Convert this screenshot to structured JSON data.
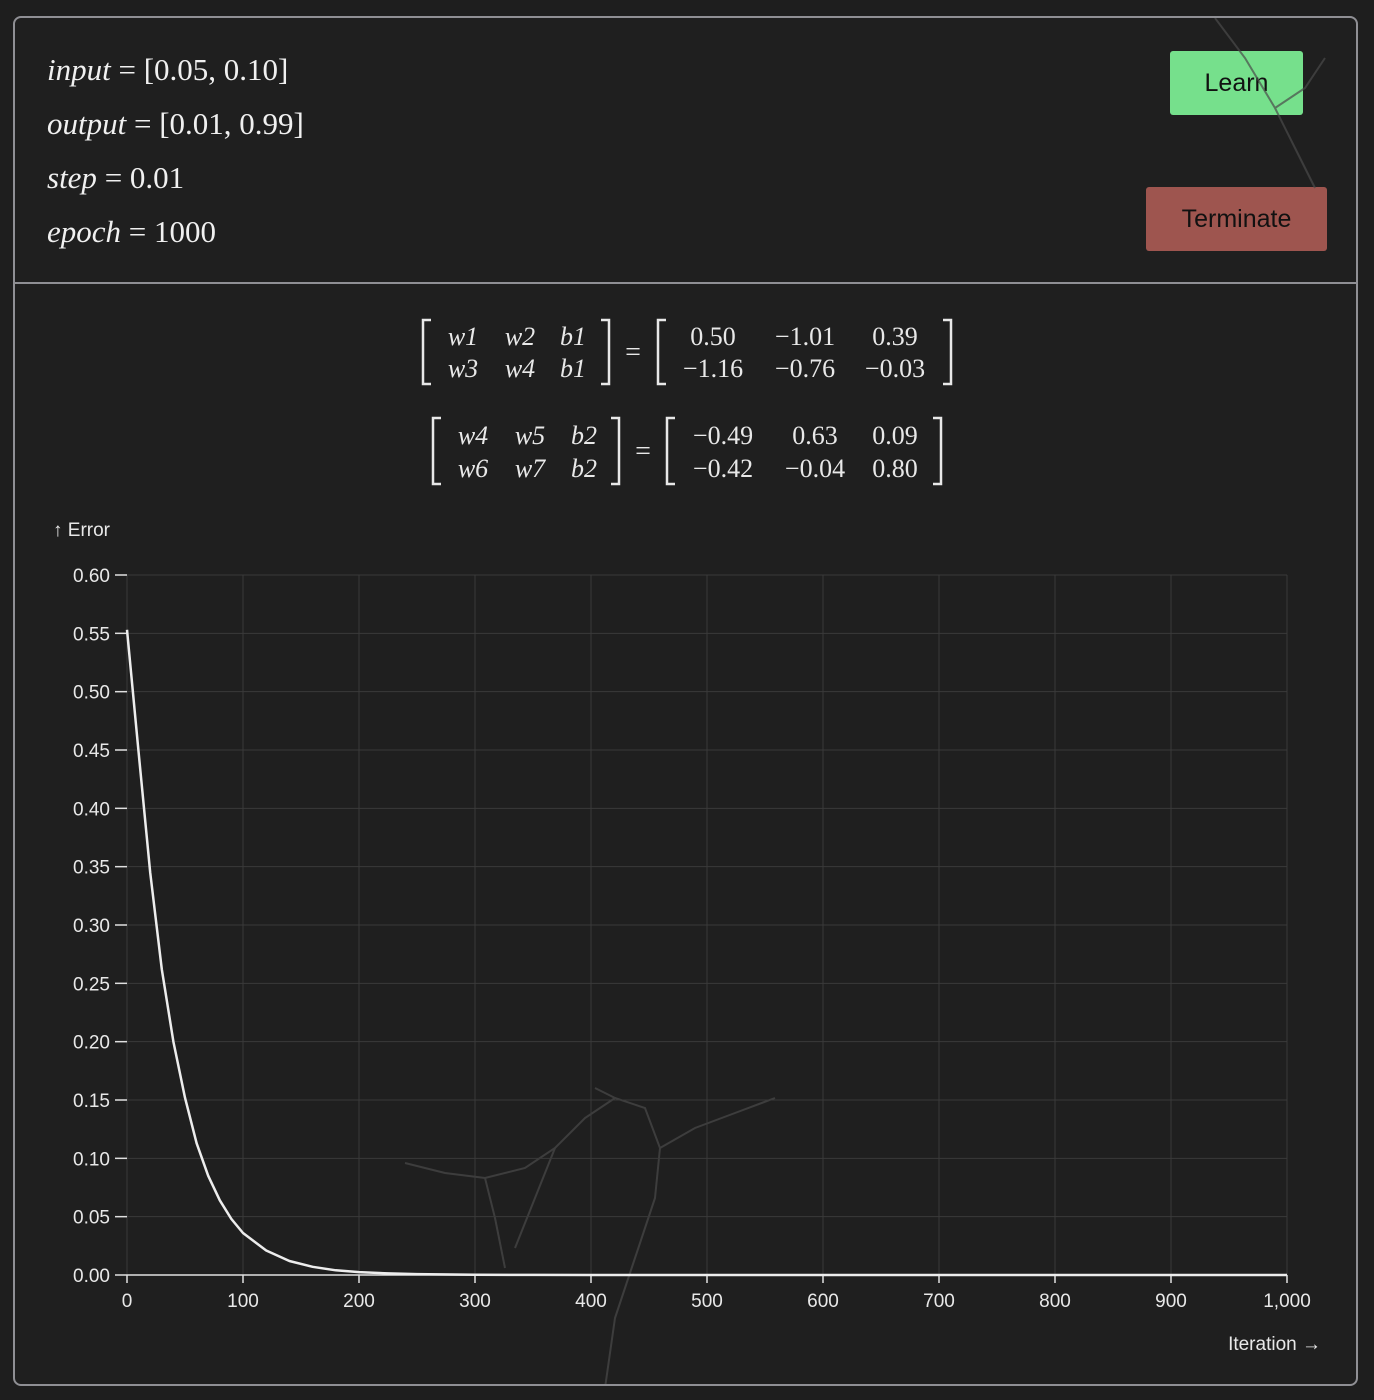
{
  "params": {
    "input": {
      "name": "input",
      "value": "[0.05, 0.10]"
    },
    "output": {
      "name": "output",
      "value": "[0.01, 0.99]"
    },
    "step": {
      "name": "step",
      "value": "0.01"
    },
    "epoch": {
      "name": "epoch",
      "value": "1000"
    }
  },
  "buttons": {
    "learn_label": "Learn",
    "terminate_label": "Terminate"
  },
  "colors": {
    "learn": "#76e08c",
    "terminate": "#9e554f",
    "background": "#1f1f1f",
    "border": "#8f8f94",
    "line": "#ededed",
    "grid": "#3a3a3a"
  },
  "matrices": [
    {
      "labels": [
        [
          "w1",
          "w2",
          "b1"
        ],
        [
          "w3",
          "w4",
          "b1"
        ]
      ],
      "values": [
        [
          "0.50",
          "−1.01",
          "0.39"
        ],
        [
          "−1.16",
          "−0.76",
          "−0.03"
        ]
      ]
    },
    {
      "labels": [
        [
          "w4",
          "w5",
          "b2"
        ],
        [
          "w6",
          "w7",
          "b2"
        ]
      ],
      "values": [
        [
          "−0.49",
          "0.63",
          "0.09"
        ],
        [
          "−0.42",
          "−0.04",
          "0.80"
        ]
      ]
    }
  ],
  "chart_data": {
    "type": "line",
    "ylabel": "↑ Error",
    "xlabel": "Iteration →",
    "xlim": [
      0,
      1000
    ],
    "ylim": [
      0,
      0.6
    ],
    "x_ticks": [
      "0",
      "100",
      "200",
      "300",
      "400",
      "500",
      "600",
      "700",
      "800",
      "900",
      "1,000"
    ],
    "y_ticks": [
      "0.00",
      "0.05",
      "0.10",
      "0.15",
      "0.20",
      "0.25",
      "0.30",
      "0.35",
      "0.40",
      "0.45",
      "0.50",
      "0.55",
      "0.60"
    ],
    "grid": true,
    "series": [
      {
        "x": [
          0,
          10,
          20,
          30,
          40,
          50,
          60,
          70,
          80,
          90,
          100,
          120,
          140,
          160,
          180,
          200,
          225,
          250,
          300,
          350,
          400,
          500,
          600,
          700,
          800,
          900,
          1000
        ],
        "y": [
          0.553,
          0.448,
          0.345,
          0.262,
          0.2,
          0.152,
          0.113,
          0.085,
          0.064,
          0.048,
          0.036,
          0.021,
          0.012,
          0.007,
          0.004,
          0.0025,
          0.0014,
          0.0008,
          0.0003,
          0.0001,
          0.0,
          0.0,
          0.0,
          0.0,
          0.0,
          0.0,
          0.0
        ]
      }
    ]
  }
}
